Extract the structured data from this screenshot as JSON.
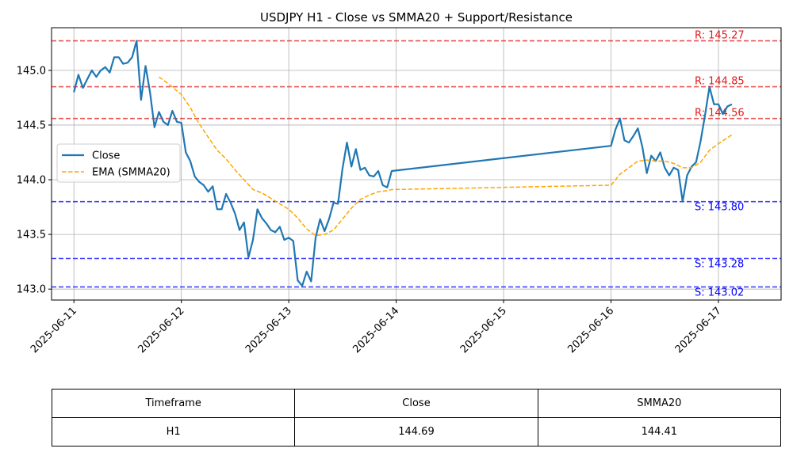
{
  "chart_data": {
    "type": "line",
    "title": "USDJPY H1 - Close vs SMMA20 + Support/Resistance",
    "xlabel": "",
    "ylabel": "",
    "x_ticks": [
      "2025-06-11",
      "2025-06-12",
      "2025-06-13",
      "2025-06-14",
      "2025-06-15",
      "2025-06-16",
      "2025-06-17"
    ],
    "x_range": [
      "2025-06-10T19:00",
      "2025-06-17T14:00"
    ],
    "y_ticks": [
      "143.0",
      "143.5",
      "144.0",
      "144.5",
      "145.0"
    ],
    "ylim": [
      142.9,
      145.39
    ],
    "grid": true,
    "legend_position": "center-left",
    "series": [
      {
        "name": "Close",
        "color": "#1f77b4",
        "style": "solid",
        "points": [
          [
            "2025-06-11T00:00",
            144.8
          ],
          [
            "2025-06-11T01:00",
            144.96
          ],
          [
            "2025-06-11T02:00",
            144.84
          ],
          [
            "2025-06-11T03:00",
            144.92
          ],
          [
            "2025-06-11T04:00",
            145.0
          ],
          [
            "2025-06-11T05:00",
            144.94
          ],
          [
            "2025-06-11T06:00",
            145.0
          ],
          [
            "2025-06-11T07:00",
            145.03
          ],
          [
            "2025-06-11T08:00",
            144.98
          ],
          [
            "2025-06-11T09:00",
            145.12
          ],
          [
            "2025-06-11T10:00",
            145.12
          ],
          [
            "2025-06-11T11:00",
            145.06
          ],
          [
            "2025-06-11T12:00",
            145.07
          ],
          [
            "2025-06-11T13:00",
            145.12
          ],
          [
            "2025-06-11T14:00",
            145.27
          ],
          [
            "2025-06-11T15:00",
            144.73
          ],
          [
            "2025-06-11T16:00",
            145.04
          ],
          [
            "2025-06-11T17:00",
            144.8
          ],
          [
            "2025-06-11T18:00",
            144.48
          ],
          [
            "2025-06-11T19:00",
            144.62
          ],
          [
            "2025-06-11T20:00",
            144.53
          ],
          [
            "2025-06-11T21:00",
            144.5
          ],
          [
            "2025-06-11T22:00",
            144.63
          ],
          [
            "2025-06-11T23:00",
            144.53
          ],
          [
            "2025-06-12T00:00",
            144.52
          ],
          [
            "2025-06-12T01:00",
            144.25
          ],
          [
            "2025-06-12T02:00",
            144.17
          ],
          [
            "2025-06-12T03:00",
            144.03
          ],
          [
            "2025-06-12T04:00",
            143.98
          ],
          [
            "2025-06-12T05:00",
            143.95
          ],
          [
            "2025-06-12T06:00",
            143.89
          ],
          [
            "2025-06-12T07:00",
            143.94
          ],
          [
            "2025-06-12T08:00",
            143.73
          ],
          [
            "2025-06-12T09:00",
            143.73
          ],
          [
            "2025-06-12T10:00",
            143.87
          ],
          [
            "2025-06-12T11:00",
            143.79
          ],
          [
            "2025-06-12T12:00",
            143.69
          ],
          [
            "2025-06-12T13:00",
            143.54
          ],
          [
            "2025-06-12T14:00",
            143.61
          ],
          [
            "2025-06-12T15:00",
            143.29
          ],
          [
            "2025-06-12T16:00",
            143.45
          ],
          [
            "2025-06-12T17:00",
            143.73
          ],
          [
            "2025-06-12T18:00",
            143.65
          ],
          [
            "2025-06-12T19:00",
            143.6
          ],
          [
            "2025-06-12T20:00",
            143.54
          ],
          [
            "2025-06-12T21:00",
            143.52
          ],
          [
            "2025-06-12T22:00",
            143.57
          ],
          [
            "2025-06-12T23:00",
            143.45
          ],
          [
            "2025-06-13T00:00",
            143.47
          ],
          [
            "2025-06-13T01:00",
            143.44
          ],
          [
            "2025-06-13T02:00",
            143.08
          ],
          [
            "2025-06-13T03:00",
            143.03
          ],
          [
            "2025-06-13T04:00",
            143.16
          ],
          [
            "2025-06-13T05:00",
            143.07
          ],
          [
            "2025-06-13T06:00",
            143.47
          ],
          [
            "2025-06-13T07:00",
            143.64
          ],
          [
            "2025-06-13T08:00",
            143.53
          ],
          [
            "2025-06-13T09:00",
            143.64
          ],
          [
            "2025-06-13T10:00",
            143.79
          ],
          [
            "2025-06-13T11:00",
            143.78
          ],
          [
            "2025-06-13T12:00",
            144.1
          ],
          [
            "2025-06-13T13:00",
            144.34
          ],
          [
            "2025-06-13T14:00",
            144.12
          ],
          [
            "2025-06-13T15:00",
            144.28
          ],
          [
            "2025-06-13T16:00",
            144.09
          ],
          [
            "2025-06-13T17:00",
            144.11
          ],
          [
            "2025-06-13T18:00",
            144.04
          ],
          [
            "2025-06-13T19:00",
            144.03
          ],
          [
            "2025-06-13T20:00",
            144.08
          ],
          [
            "2025-06-13T21:00",
            143.95
          ],
          [
            "2025-06-13T22:00",
            143.93
          ],
          [
            "2025-06-13T23:00",
            144.08
          ],
          [
            "2025-06-16T00:00",
            144.31
          ],
          [
            "2025-06-16T01:00",
            144.46
          ],
          [
            "2025-06-16T02:00",
            144.56
          ],
          [
            "2025-06-16T03:00",
            144.36
          ],
          [
            "2025-06-16T04:00",
            144.34
          ],
          [
            "2025-06-16T05:00",
            144.4
          ],
          [
            "2025-06-16T06:00",
            144.47
          ],
          [
            "2025-06-16T07:00",
            144.3
          ],
          [
            "2025-06-16T08:00",
            144.06
          ],
          [
            "2025-06-16T09:00",
            144.22
          ],
          [
            "2025-06-16T10:00",
            144.17
          ],
          [
            "2025-06-16T11:00",
            144.25
          ],
          [
            "2025-06-16T12:00",
            144.11
          ],
          [
            "2025-06-16T13:00",
            144.04
          ],
          [
            "2025-06-16T14:00",
            144.11
          ],
          [
            "2025-06-16T15:00",
            144.09
          ],
          [
            "2025-06-16T16:00",
            143.8
          ],
          [
            "2025-06-16T17:00",
            144.04
          ],
          [
            "2025-06-16T18:00",
            144.12
          ],
          [
            "2025-06-16T19:00",
            144.16
          ],
          [
            "2025-06-16T20:00",
            144.35
          ],
          [
            "2025-06-16T21:00",
            144.59
          ],
          [
            "2025-06-16T22:00",
            144.85
          ],
          [
            "2025-06-16T23:00",
            144.69
          ],
          [
            "2025-06-17T00:00",
            144.69
          ],
          [
            "2025-06-17T01:00",
            144.6
          ],
          [
            "2025-06-17T02:00",
            144.67
          ],
          [
            "2025-06-17T03:00",
            144.69
          ]
        ]
      },
      {
        "name": "EMA (SMMA20)",
        "color": "#ffa500",
        "style": "dashed",
        "points": [
          [
            "2025-06-11T19:00",
            144.94
          ],
          [
            "2025-06-11T21:00",
            144.88
          ],
          [
            "2025-06-12T00:00",
            144.78
          ],
          [
            "2025-06-12T02:00",
            144.66
          ],
          [
            "2025-06-12T04:00",
            144.51
          ],
          [
            "2025-06-12T06:00",
            144.39
          ],
          [
            "2025-06-12T08:00",
            144.27
          ],
          [
            "2025-06-12T10:00",
            144.19
          ],
          [
            "2025-06-12T12:00",
            144.09
          ],
          [
            "2025-06-12T14:00",
            144.0
          ],
          [
            "2025-06-12T16:00",
            143.91
          ],
          [
            "2025-06-12T18:00",
            143.88
          ],
          [
            "2025-06-12T20:00",
            143.83
          ],
          [
            "2025-06-12T22:00",
            143.78
          ],
          [
            "2025-06-13T00:00",
            143.73
          ],
          [
            "2025-06-13T02:00",
            143.65
          ],
          [
            "2025-06-13T04:00",
            143.55
          ],
          [
            "2025-06-13T06:00",
            143.49
          ],
          [
            "2025-06-13T08:00",
            143.5
          ],
          [
            "2025-06-13T10:00",
            143.54
          ],
          [
            "2025-06-13T12:00",
            143.64
          ],
          [
            "2025-06-13T14:00",
            143.74
          ],
          [
            "2025-06-13T16:00",
            143.82
          ],
          [
            "2025-06-13T18:00",
            143.86
          ],
          [
            "2025-06-13T20:00",
            143.89
          ],
          [
            "2025-06-13T22:00",
            143.9
          ],
          [
            "2025-06-13T23:00",
            143.91
          ],
          [
            "2025-06-16T00:00",
            143.95
          ],
          [
            "2025-06-16T02:00",
            144.05
          ],
          [
            "2025-06-16T04:00",
            144.11
          ],
          [
            "2025-06-16T06:00",
            144.17
          ],
          [
            "2025-06-16T08:00",
            144.18
          ],
          [
            "2025-06-16T10:00",
            144.17
          ],
          [
            "2025-06-16T12:00",
            144.17
          ],
          [
            "2025-06-16T14:00",
            144.15
          ],
          [
            "2025-06-16T16:00",
            144.11
          ],
          [
            "2025-06-16T18:00",
            144.11
          ],
          [
            "2025-06-16T20:00",
            144.16
          ],
          [
            "2025-06-16T22:00",
            144.27
          ],
          [
            "2025-06-17T00:00",
            144.33
          ],
          [
            "2025-06-17T03:00",
            144.41
          ]
        ]
      }
    ],
    "levels": [
      {
        "type": "resistance",
        "value": 145.27,
        "label": "R: 145.27",
        "color": "#e41a1c"
      },
      {
        "type": "resistance",
        "value": 144.85,
        "label": "R: 144.85",
        "color": "#e41a1c"
      },
      {
        "type": "resistance",
        "value": 144.56,
        "label": "R: 144.56",
        "color": "#e41a1c"
      },
      {
        "type": "support",
        "value": 143.8,
        "label": "S: 143.80",
        "color": "#0000ff"
      },
      {
        "type": "support",
        "value": 143.28,
        "label": "S: 143.28",
        "color": "#0000ff"
      },
      {
        "type": "support",
        "value": 143.02,
        "label": "S: 143.02",
        "color": "#0000ff"
      }
    ]
  },
  "table": {
    "headers": [
      "Timeframe",
      "Close",
      "SMMA20"
    ],
    "row": [
      "H1",
      "144.69",
      "144.41"
    ]
  }
}
